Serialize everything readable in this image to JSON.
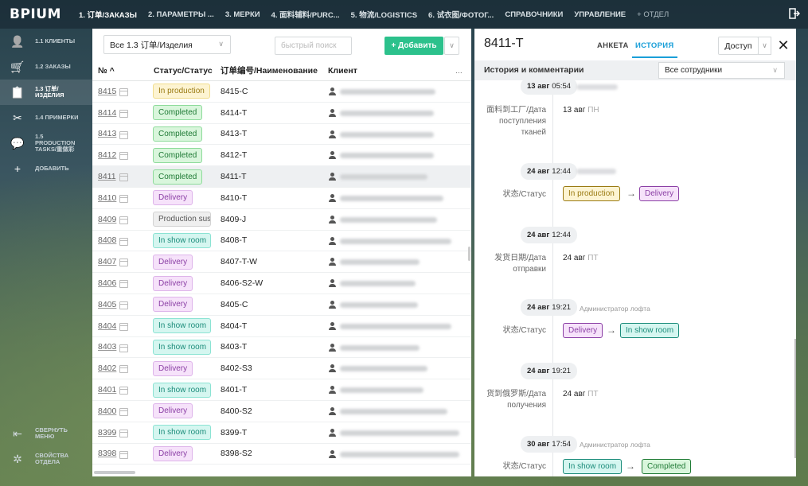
{
  "app": {
    "logo": "BPIUM"
  },
  "topnav": [
    {
      "label": "1. 订单/ЗАКАЗЫ",
      "active": true
    },
    {
      "label": "2. ПАРАМЕТРЫ ...",
      "active": false
    },
    {
      "label": "3. МЕРКИ",
      "active": false
    },
    {
      "label": "4. 面料辅料/PURC...",
      "active": false
    },
    {
      "label": "5. 物流/LOGISTICS",
      "active": false
    },
    {
      "label": "6. 试衣图/ФОТОГ...",
      "active": false
    },
    {
      "label": "СПРАВОЧНИКИ",
      "active": false
    },
    {
      "label": "УПРАВЛЕНИЕ",
      "active": false
    },
    {
      "label": "+  ОТДЕЛ",
      "active": false
    }
  ],
  "sidebar": {
    "items": [
      {
        "label": "1.1 КЛИЕНТЫ",
        "icon": "person-icon"
      },
      {
        "label": "1.2 ЗАКАЗЫ",
        "icon": "cart-icon"
      },
      {
        "label": "1.3 订单/ ИЗДЕЛИЯ",
        "icon": "clipboard-icon",
        "active": true
      },
      {
        "label": "1.4 ПРИМЕРКИ",
        "icon": "scissors-icon"
      },
      {
        "label": "1.5 PRODUCTION TASKS/重做彩",
        "icon": "chat-icon"
      },
      {
        "label": "ДОБАВИТЬ",
        "icon": "plus-icon"
      }
    ],
    "collapse_label": "СВЕРНУТЬ МЕНЮ",
    "settings_label": "СВОЙСТВА ОТДЕЛА"
  },
  "table": {
    "view_select": "Все 1.3 订单/Изделия",
    "search_placeholder": "быстрый поиск",
    "add_label": "+ Добавить",
    "headers": {
      "no": "№ ^",
      "status": "Статус/Статус",
      "name": "订单编号/Наименование",
      "client": "Клиент",
      "more": "..."
    },
    "rows": [
      {
        "no": "8415",
        "status": "In production",
        "kind": "prod",
        "name": "8415-C",
        "blur": 120
      },
      {
        "no": "8414",
        "status": "Completed",
        "kind": "comp",
        "name": "8414-T",
        "blur": 118
      },
      {
        "no": "8413",
        "status": "Completed",
        "kind": "comp",
        "name": "8413-T",
        "blur": 118
      },
      {
        "no": "8412",
        "status": "Completed",
        "kind": "comp",
        "name": "8412-T",
        "blur": 118
      },
      {
        "no": "8411",
        "status": "Completed",
        "kind": "comp",
        "name": "8411-T",
        "blur": 110,
        "selected": true
      },
      {
        "no": "8410",
        "status": "Delivery",
        "kind": "deliv",
        "name": "8410-T",
        "blur": 130
      },
      {
        "no": "8409",
        "status": "Production susp",
        "kind": "susp",
        "name": "8409-J",
        "blur": 122
      },
      {
        "no": "8408",
        "status": "In show room",
        "kind": "show",
        "name": "8408-T",
        "blur": 140
      },
      {
        "no": "8407",
        "status": "Delivery",
        "kind": "deliv",
        "name": "8407-T-W",
        "blur": 100
      },
      {
        "no": "8406",
        "status": "Delivery",
        "kind": "deliv",
        "name": "8406-S2-W",
        "blur": 95
      },
      {
        "no": "8405",
        "status": "Delivery",
        "kind": "deliv",
        "name": "8405-C",
        "blur": 98
      },
      {
        "no": "8404",
        "status": "In show room",
        "kind": "show",
        "name": "8404-T",
        "blur": 140
      },
      {
        "no": "8403",
        "status": "In show room",
        "kind": "show",
        "name": "8403-T",
        "blur": 100
      },
      {
        "no": "8402",
        "status": "Delivery",
        "kind": "deliv",
        "name": "8402-S3",
        "blur": 110
      },
      {
        "no": "8401",
        "status": "In show room",
        "kind": "show",
        "name": "8401-T",
        "blur": 105
      },
      {
        "no": "8400",
        "status": "Delivery",
        "kind": "deliv",
        "name": "8400-S2",
        "blur": 135
      },
      {
        "no": "8399",
        "status": "In show room",
        "kind": "show",
        "name": "8399-T",
        "blur": 150
      },
      {
        "no": "8398",
        "status": "Delivery",
        "kind": "deliv",
        "name": "8398-S2",
        "blur": 150
      }
    ]
  },
  "detail": {
    "title": "8411-T",
    "tabs": [
      {
        "label": "АНКЕТА",
        "active": false
      },
      {
        "label": "ИСТОРИЯ",
        "active": true
      }
    ],
    "access_label": "Доступ",
    "subtitle": "История и комментарии",
    "employee_select": "Все сотрудники",
    "history": {
      "t1": {
        "date": "13 авг",
        "time": "05:54"
      },
      "f1_label": "面料到工厂/Дата поступления тканей",
      "f1_date": "13 авг",
      "f1_day": "ПН",
      "t2": {
        "date": "24 авг",
        "time": "12:44"
      },
      "f2_label": "状态/Статус",
      "f2_from": "In production",
      "f2_to": "Delivery",
      "t3": {
        "date": "24 авг",
        "time": "12:44"
      },
      "f3_label": "发货日期/Дата отправки",
      "f3_date": "24 авг",
      "f3_day": "ПТ",
      "t4": {
        "date": "24 авг",
        "time": "19:21",
        "user": "Администратор лофта"
      },
      "f4_label": "状态/Статус",
      "f4_from": "Delivery",
      "f4_to": "In show room",
      "t5": {
        "date": "24 авг",
        "time": "19:21"
      },
      "f5_label": "货到俄罗斯/Дата получения",
      "f5_date": "24 авг",
      "f5_day": "ПТ",
      "t6": {
        "date": "30 авг",
        "time": "17:54",
        "user": "Администратор лофта"
      },
      "f6_label": "状态/Статус",
      "f6_from": "In show room",
      "f6_to": "Completed"
    }
  }
}
